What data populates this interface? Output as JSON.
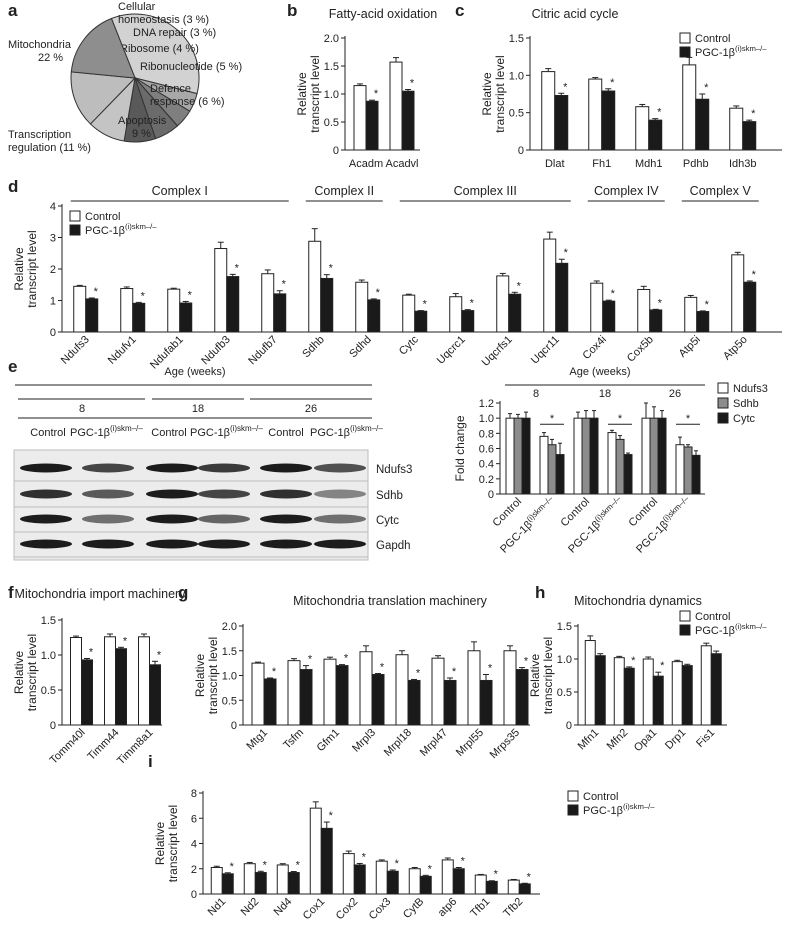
{
  "colors": {
    "control": "#ffffff",
    "pgc": "#1a1a1a",
    "axis": "#222222",
    "sdhb": "#8c8c8c"
  },
  "panel_labels": {
    "a": "a",
    "b": "b",
    "c": "c",
    "d": "d",
    "e": "e",
    "f": "f",
    "g": "g",
    "h": "h",
    "i": "i"
  },
  "legend": {
    "control": "Control",
    "pgc_prefix": "PGC-1β",
    "pgc_sup": "(i)skm–/–"
  },
  "panel_e": {
    "age_header": "Age (weeks)",
    "ages": [
      "8",
      "18",
      "26"
    ],
    "lane_control": "Control",
    "lane_pgc_prefix": "PGC-1β",
    "lane_pgc_sup": "(i)skm–/–",
    "blot_rows": [
      "Ndufs3",
      "Sdhb",
      "Cytc",
      "Gapdh"
    ]
  },
  "chart_data": [
    {
      "id": "a",
      "type": "pie",
      "labels": [
        "Mitochondria 22 %",
        "Cellular homeostasis (3 %)",
        "DNA repair (3 %)",
        "Ribosome (4 %)",
        "Ribonucleotide (5 %)",
        "Defence response (6 %)",
        "Apoptosis 9 %",
        "Transcription regulation (11 %)"
      ],
      "label_lines": [
        [
          "Mitochondria",
          "22 %"
        ],
        [
          "Cellular",
          "homeostasis (3 %)"
        ],
        [
          "DNA repair (3 %)"
        ],
        [
          "Ribosome (4 %)"
        ],
        [
          "Ribonucleotide (5 %)"
        ],
        [
          "Defence",
          "response (6 %)"
        ],
        [
          "Apoptosis",
          "9 %"
        ],
        [
          "Transcription",
          "regulation (11 %)"
        ]
      ],
      "values": [
        22,
        3,
        3,
        4,
        5,
        6,
        9,
        11
      ],
      "colors": [
        "#d2d2d2",
        "#a8a8a8",
        "#7f7f7f",
        "#6b6b6b",
        "#595959",
        "#c4c4c4",
        "#bdbdbd",
        "#8e8e8e"
      ]
    },
    {
      "id": "b",
      "type": "bar",
      "title": "Fatty-acid oxidation",
      "ylabel": "Relative transcript level",
      "categories": [
        "Acadm",
        "Acadvl"
      ],
      "ylim": [
        0,
        2.0
      ],
      "yticks": [
        "0",
        "0.5",
        "1.0",
        "1.5",
        "2.0"
      ],
      "series": [
        {
          "name": "Control",
          "values": [
            1.15,
            1.57
          ],
          "err": [
            0.03,
            0.08
          ]
        },
        {
          "name": "PGC-1β(i)skm–/–",
          "values": [
            0.87,
            1.05
          ],
          "err": [
            0.02,
            0.03
          ]
        }
      ],
      "sig": [
        true,
        true
      ]
    },
    {
      "id": "c",
      "type": "bar",
      "title": "Citric acid cycle",
      "ylabel": "Relative transcript level",
      "categories": [
        "Dlat",
        "Fh1",
        "Mdh1",
        "Pdhb",
        "Idh3b"
      ],
      "ylim": [
        0,
        1.5
      ],
      "yticks": [
        "0",
        "0.5",
        "1.0",
        "1.5"
      ],
      "series": [
        {
          "name": "Control",
          "values": [
            1.05,
            0.95,
            0.58,
            1.14,
            0.56
          ],
          "err": [
            0.04,
            0.02,
            0.03,
            0.1,
            0.03
          ]
        },
        {
          "name": "PGC-1β(i)skm–/–",
          "values": [
            0.73,
            0.79,
            0.4,
            0.68,
            0.38
          ],
          "err": [
            0.03,
            0.03,
            0.02,
            0.07,
            0.02
          ]
        }
      ],
      "sig": [
        true,
        true,
        true,
        true,
        true
      ]
    },
    {
      "id": "d",
      "type": "bar",
      "ylabel": "Relative transcript level",
      "categories": [
        "Ndufs3",
        "Ndufv1",
        "Ndufab1",
        "Ndufb3",
        "Ndufb7",
        "Sdhb",
        "Sdhd",
        "Cytc",
        "Uqcrc1",
        "Uqcrfs1",
        "Uqcr11",
        "Cox4i",
        "Cox5b",
        "Atp5i",
        "Atp5o"
      ],
      "ylim": [
        0,
        4
      ],
      "yticks": [
        "0",
        "1",
        "2",
        "3",
        "4"
      ],
      "groups": [
        "Complex I",
        "Complex II",
        "Complex III",
        "Complex IV",
        "Complex V"
      ],
      "series": [
        {
          "name": "Control",
          "values": [
            1.45,
            1.38,
            1.36,
            2.65,
            1.85,
            2.88,
            1.58,
            1.17,
            1.12,
            1.78,
            2.95,
            1.55,
            1.35,
            1.1,
            2.45
          ],
          "err": [
            0.03,
            0.05,
            0.03,
            0.2,
            0.12,
            0.4,
            0.07,
            0.03,
            0.1,
            0.08,
            0.22,
            0.07,
            0.1,
            0.06,
            0.08
          ]
        },
        {
          "name": "PGC-1β(i)skm–/–",
          "values": [
            1.05,
            0.91,
            0.92,
            1.76,
            1.21,
            1.7,
            1.02,
            0.66,
            0.68,
            1.2,
            2.18,
            0.98,
            0.7,
            0.65,
            1.58
          ],
          "err": [
            0.03,
            0.03,
            0.05,
            0.07,
            0.1,
            0.12,
            0.03,
            0.02,
            0.03,
            0.06,
            0.13,
            0.03,
            0.02,
            0.02,
            0.04
          ]
        }
      ],
      "sig": [
        true,
        true,
        true,
        true,
        true,
        true,
        true,
        true,
        true,
        true,
        true,
        true,
        true,
        true,
        true
      ]
    },
    {
      "id": "e",
      "type": "bar",
      "ylabel": "Fold change",
      "xlabel": "Age (weeks)",
      "ylim": [
        0,
        1.2
      ],
      "yticks": [
        "0",
        "0.2",
        "0.4",
        "0.6",
        "0.8",
        "1.0",
        "1.2"
      ],
      "ages": [
        "8",
        "18",
        "26"
      ],
      "categories": [
        "Control",
        "PGC-1β(i)skm–/–",
        "Control",
        "PGC-1β(i)skm–/–",
        "Control",
        "PGC-1β(i)skm–/–"
      ],
      "series": [
        {
          "name": "Ndufs3",
          "values": [
            1.0,
            0.76,
            1.0,
            0.81,
            1.0,
            0.65
          ],
          "err": [
            0.06,
            0.05,
            0.08,
            0.03,
            0.2,
            0.1
          ]
        },
        {
          "name": "Sdhb",
          "values": [
            1.0,
            0.65,
            1.0,
            0.72,
            1.0,
            0.62
          ],
          "err": [
            0.05,
            0.07,
            0.1,
            0.05,
            0.15,
            0.03
          ]
        },
        {
          "name": "Cytc",
          "values": [
            1.0,
            0.52,
            1.0,
            0.52,
            1.0,
            0.51
          ],
          "err": [
            0.08,
            0.15,
            0.1,
            0.02,
            0.1,
            0.06
          ]
        }
      ],
      "sig": [
        false,
        true,
        false,
        true,
        false,
        true
      ]
    },
    {
      "id": "f",
      "type": "bar",
      "title": "Mitochondria import machinery",
      "ylabel": "Relative transcript level",
      "categories": [
        "Tomm40l",
        "Timm44",
        "Timm8a1"
      ],
      "ylim": [
        0,
        1.5
      ],
      "yticks": [
        "0",
        "0.5",
        "1.0",
        "1.5"
      ],
      "series": [
        {
          "name": "Control",
          "values": [
            1.25,
            1.26,
            1.26
          ],
          "err": [
            0.02,
            0.04,
            0.04
          ]
        },
        {
          "name": "PGC-1β(i)skm–/–",
          "values": [
            0.93,
            1.09,
            0.86
          ],
          "err": [
            0.02,
            0.02,
            0.05
          ]
        }
      ],
      "sig": [
        true,
        true,
        true
      ]
    },
    {
      "id": "g",
      "type": "bar",
      "title": "Mitochondria translation machinery",
      "ylabel": "Relative transcript level",
      "categories": [
        "Mtg1",
        "Tsfm",
        "Gfm1",
        "Mrpl3",
        "Mrpl18",
        "Mrpl47",
        "Mrpl55",
        "Mrps35"
      ],
      "ylim": [
        0,
        2.0
      ],
      "yticks": [
        "0",
        "0.5",
        "1.0",
        "1.5",
        "2.0"
      ],
      "series": [
        {
          "name": "Control",
          "values": [
            1.25,
            1.3,
            1.33,
            1.48,
            1.42,
            1.35,
            1.5,
            1.5
          ],
          "err": [
            0.02,
            0.04,
            0.04,
            0.12,
            0.08,
            0.05,
            0.18,
            0.1
          ]
        },
        {
          "name": "PGC-1β(i)skm–/–",
          "values": [
            0.93,
            1.12,
            1.2,
            1.02,
            0.9,
            0.9,
            0.9,
            1.12
          ],
          "err": [
            0.02,
            0.08,
            0.02,
            0.02,
            0.02,
            0.05,
            0.12,
            0.04
          ]
        }
      ],
      "sig": [
        true,
        true,
        true,
        true,
        true,
        true,
        true,
        true
      ]
    },
    {
      "id": "h",
      "type": "bar",
      "title": "Mitochondria dynamics",
      "ylabel": "Relative transcript level",
      "categories": [
        "Mfn1",
        "Mfn2",
        "Opa1",
        "Drp1",
        "Fis1"
      ],
      "ylim": [
        0,
        1.5
      ],
      "yticks": [
        "0",
        "0.5",
        "1.0",
        "1.5"
      ],
      "series": [
        {
          "name": "Control",
          "values": [
            1.28,
            1.02,
            1.0,
            0.96,
            1.2
          ],
          "err": [
            0.07,
            0.02,
            0.03,
            0.02,
            0.04
          ]
        },
        {
          "name": "PGC-1β(i)skm–/–",
          "values": [
            1.05,
            0.86,
            0.74,
            0.9,
            1.08
          ],
          "err": [
            0.03,
            0.02,
            0.06,
            0.02,
            0.04
          ]
        }
      ],
      "sig": [
        false,
        true,
        true,
        false,
        false
      ]
    },
    {
      "id": "i",
      "type": "bar",
      "ylabel": "Relative transcript level",
      "categories": [
        "Nd1",
        "Nd2",
        "Nd4",
        "Cox1",
        "Cox2",
        "Cox3",
        "CytB",
        "atp6",
        "Tfb1",
        "Tfb2"
      ],
      "ylim": [
        0,
        8
      ],
      "yticks": [
        "0",
        "2",
        "4",
        "6",
        "8"
      ],
      "series": [
        {
          "name": "Control",
          "values": [
            2.1,
            2.4,
            2.3,
            6.8,
            3.2,
            2.6,
            2.0,
            2.7,
            1.5,
            1.1
          ],
          "err": [
            0.1,
            0.1,
            0.1,
            0.5,
            0.2,
            0.1,
            0.1,
            0.15,
            0.05,
            0.05
          ]
        },
        {
          "name": "PGC-1β(i)skm–/–",
          "values": [
            1.6,
            1.7,
            1.7,
            5.2,
            2.3,
            1.8,
            1.4,
            2.0,
            1.0,
            0.8
          ],
          "err": [
            0.08,
            0.1,
            0.08,
            0.5,
            0.12,
            0.1,
            0.08,
            0.1,
            0.05,
            0.05
          ]
        }
      ],
      "sig": [
        true,
        true,
        true,
        true,
        true,
        true,
        true,
        true,
        true,
        true
      ]
    }
  ]
}
